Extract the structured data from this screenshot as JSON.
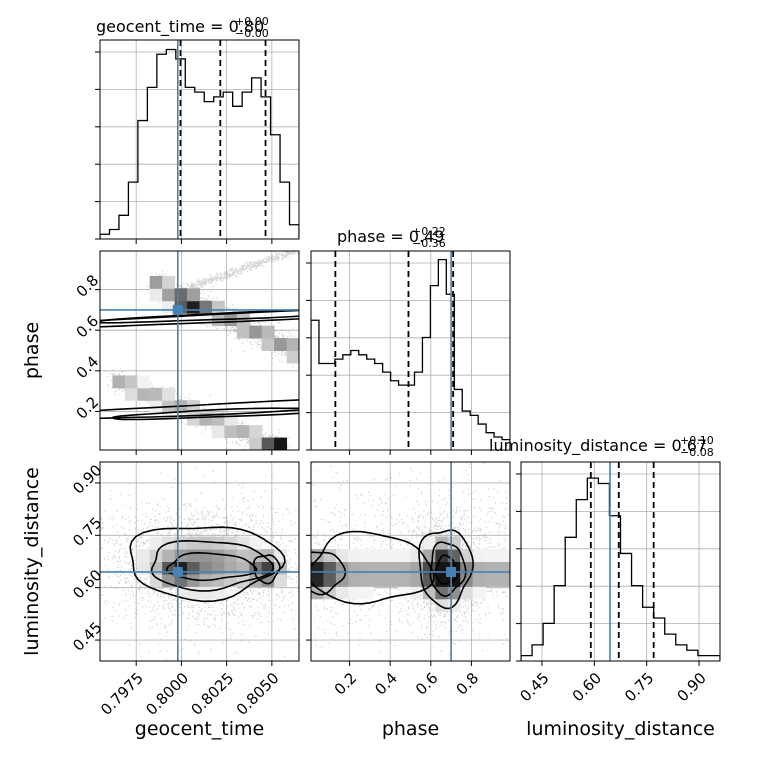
{
  "chart_data": {
    "type": "corner",
    "title": "",
    "parameters": [
      "geocent_time",
      "phase",
      "luminosity_distance"
    ],
    "truth_color": "#4682b4",
    "grid": true,
    "panel_titles": [
      {
        "label": "geocent_time = 0.80",
        "upper": "+0.00",
        "lower": "−0.00"
      },
      {
        "label": "phase = 0.49",
        "upper": "+0.22",
        "lower": "−0.36"
      },
      {
        "label": "luminosity_distance = 0.67",
        "upper": "+0.10",
        "lower": "−0.08"
      }
    ],
    "xlabels": [
      "geocent_time",
      "phase",
      "luminosity_distance"
    ],
    "ylabels": [
      "",
      "phase",
      "luminosity_distance"
    ],
    "ranges": [
      [
        0.7955,
        0.8065
      ],
      [
        0.01,
        0.99
      ],
      [
        0.39,
        0.96
      ]
    ],
    "ticks": [
      {
        "values": [
          0.7975,
          0.8,
          0.8025,
          0.805
        ],
        "labels": [
          "0.7975",
          "0.8000",
          "0.8025",
          "0.8050"
        ]
      },
      {
        "values": [
          0.2,
          0.4,
          0.6,
          0.8
        ],
        "labels": [
          "0.2",
          "0.4",
          "0.6",
          "0.8"
        ]
      },
      {
        "values": [
          0.45,
          0.6,
          0.75,
          0.9
        ],
        "labels": [
          "0.45",
          "0.60",
          "0.75",
          "0.90"
        ]
      }
    ],
    "truths": [
      0.7998,
      0.7,
      0.645
    ],
    "quantiles": [
      [
        0.79995,
        0.80215,
        0.80465
      ],
      [
        0.13,
        0.49,
        0.71
      ],
      [
        0.59,
        0.67,
        0.77
      ]
    ],
    "histograms": [
      [
        1,
        2,
        5,
        12,
        25,
        32,
        39,
        40,
        38,
        32,
        31,
        29,
        30,
        31,
        28,
        31,
        34,
        30,
        22,
        12,
        3
      ],
      [
        15,
        10,
        10,
        10.5,
        11,
        11.5,
        11,
        10.5,
        10,
        9,
        8,
        7.5,
        7.5,
        9,
        13,
        19,
        22,
        18,
        7,
        4.5,
        4,
        3,
        2,
        1.5,
        1.2
      ],
      [
        1,
        3,
        7,
        14,
        23,
        30,
        34,
        33,
        27,
        20,
        14,
        10,
        8,
        5,
        3,
        2,
        1,
        1
      ]
    ],
    "hist_max": [
      42,
      23,
      37
    ]
  }
}
